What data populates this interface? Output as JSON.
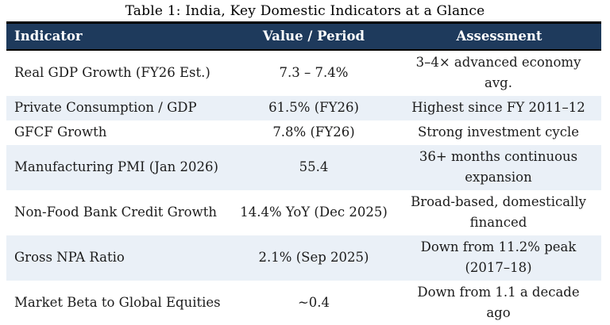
{
  "title": "Table 1: India, Key Domestic Indicators at a Glance",
  "table": {
    "columns": [
      "Indicator",
      "Value / Period",
      "Assessment"
    ],
    "rows": [
      {
        "indicator": "Real GDP Growth (FY26 Est.)",
        "value": "7.3 – 7.4%",
        "assessment": [
          "3–4× advanced economy",
          "avg."
        ]
      },
      {
        "indicator": "Private Consumption / GDP",
        "value": "61.5% (FY26)",
        "assessment": "Highest since FY 2011–12"
      },
      {
        "indicator": "GFCF Growth",
        "value": "7.8% (FY26)",
        "assessment": "Strong investment cycle"
      },
      {
        "indicator": "Manufacturing PMI (Jan 2026)",
        "value": "55.4",
        "assessment": [
          "36+ months continuous",
          "expansion"
        ]
      },
      {
        "indicator": "Non-Food Bank Credit Growth",
        "value": "14.4% YoY (Dec 2025)",
        "assessment": [
          "Broad-based, domestically",
          "financed"
        ]
      },
      {
        "indicator": "Gross NPA Ratio",
        "value": "2.1% (Sep 2025)",
        "assessment": [
          "Down from 11.2% peak",
          "(2017–18)"
        ]
      },
      {
        "indicator": "Market Beta to Global Equities",
        "value": "~0.4",
        "assessment": [
          "Down from 1.1 a decade",
          "ago"
        ]
      }
    ],
    "colors": {
      "header_bg": "#1E3A5C",
      "header_text": "#FFFFFF",
      "stripe_bg": "#EAF0F7",
      "row_bg": "#FFFFFF",
      "rule": "#000000",
      "body_text": "#1B1B1B"
    }
  }
}
